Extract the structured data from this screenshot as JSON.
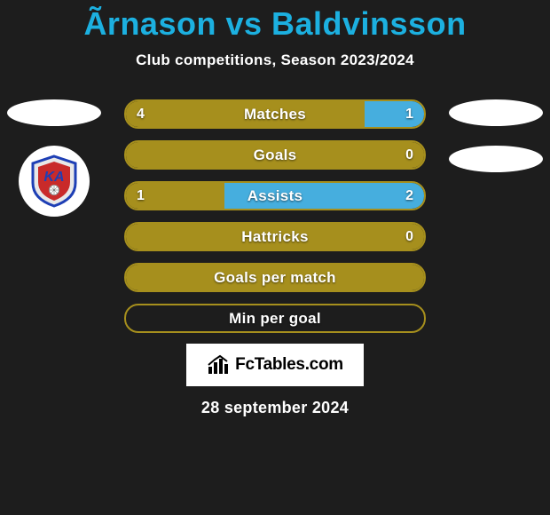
{
  "title": "Ãrnason vs Baldvinsson",
  "subtitle": "Club competitions, Season 2023/2024",
  "date": "28 september 2024",
  "branding_text": "FcTables.com",
  "colors": {
    "background": "#1d1d1d",
    "title": "#1cb0e0",
    "text_white": "#ffffff",
    "bar_primary": "#a68f1d",
    "bar_secondary": "#46aede",
    "ellipse": "#ffffff",
    "branding_bg": "#ffffff",
    "branding_text": "#000000"
  },
  "club_badge": {
    "letter": "KA",
    "shield_fill": "#e8e8e8",
    "shield_stroke": "#1e3fb5",
    "inner_fill": "#c92a2a",
    "text_color": "#1e3fb5"
  },
  "bars": [
    {
      "label": "Matches",
      "left": "4",
      "right": "1",
      "left_pct": 80,
      "right_pct": 20,
      "show_values": true
    },
    {
      "label": "Goals",
      "left": "",
      "right": "0",
      "left_pct": 100,
      "right_pct": 0,
      "show_values": true
    },
    {
      "label": "Assists",
      "left": "1",
      "right": "2",
      "left_pct": 33,
      "right_pct": 67,
      "show_values": true
    },
    {
      "label": "Hattricks",
      "left": "",
      "right": "0",
      "left_pct": 100,
      "right_pct": 0,
      "show_values": true
    },
    {
      "label": "Goals per match",
      "left": "",
      "right": "",
      "left_pct": 100,
      "right_pct": 0,
      "show_values": false
    },
    {
      "label": "Min per goal",
      "left": "",
      "right": "",
      "left_pct": 0,
      "right_pct": 0,
      "show_values": false
    }
  ]
}
